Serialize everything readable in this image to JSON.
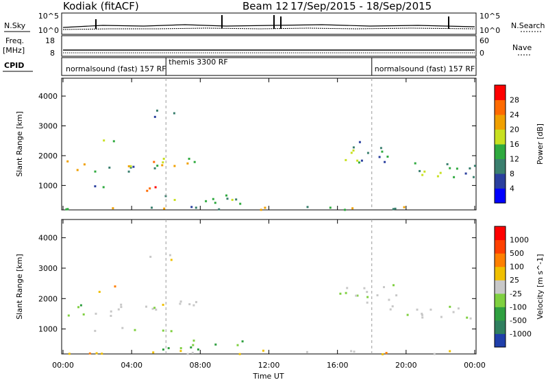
{
  "header": {
    "radar": "Kodiak (fitACF)",
    "beam": "Beam 12",
    "date_range": "17/Sep/2015 - 18/Sep/2015"
  },
  "noise_panel": {
    "left_label": "N.Sky",
    "right_label": "N.Search",
    "left_ticks": [
      "10^5",
      "10^0"
    ],
    "right_ticks": [
      "10^5",
      "10^0"
    ]
  },
  "freq_panel": {
    "left_label_1": "Freq.",
    "left_label_2": "[MHz]",
    "right_label": "Nave",
    "left_ticks": [
      "18",
      "8"
    ],
    "right_ticks": [
      "60",
      "0"
    ]
  },
  "cpid_panel": {
    "label": "CPID",
    "segments": [
      {
        "text": "normalsound (fast) 157 RF",
        "start_hour": 0
      },
      {
        "text": "themis 3300 RF",
        "start_hour": 6
      },
      {
        "text": "normalsound (fast) 157 RF",
        "start_hour": 18
      }
    ]
  },
  "chart_data": [
    {
      "type": "heatmap",
      "name": "power",
      "ylabel": "Slant Range [km]",
      "ylim": [
        180,
        4600
      ],
      "yticks": [
        "1000",
        "2000",
        "3000",
        "4000"
      ],
      "xlim": [
        0,
        24
      ],
      "colorbar_label": "Power [dB]",
      "colorbar_ticks": [
        "4",
        "8",
        "12",
        "16",
        "20",
        "24",
        "28"
      ],
      "colors": [
        "#0000ff",
        "#2a3f9e",
        "#3a7f6e",
        "#2faa3f",
        "#c8e020",
        "#f0a000",
        "#ff6a00",
        "#ff0000"
      ]
    },
    {
      "type": "heatmap",
      "name": "velocity",
      "ylabel": "Slant Range [km]",
      "ylim": [
        180,
        4600
      ],
      "yticks": [
        "1000",
        "2000",
        "3000",
        "4000"
      ],
      "xlim": [
        0,
        24
      ],
      "xlabel": "Time UT",
      "xticks": [
        "00:00",
        "04:00",
        "08:00",
        "12:00",
        "16:00",
        "20:00",
        "00:00"
      ],
      "colorbar_label": "Velocity [m s^-1]",
      "colorbar_ticks": [
        "1000",
        "500",
        "100",
        "25",
        "-25",
        "-100",
        "-500",
        "-1000"
      ],
      "colors": [
        "#1f3faa",
        "#2f7f5f",
        "#2fa040",
        "#7fd040",
        "#c8c8c8",
        "#f0c000",
        "#ff8000",
        "#ff4000",
        "#ff0000"
      ]
    }
  ]
}
